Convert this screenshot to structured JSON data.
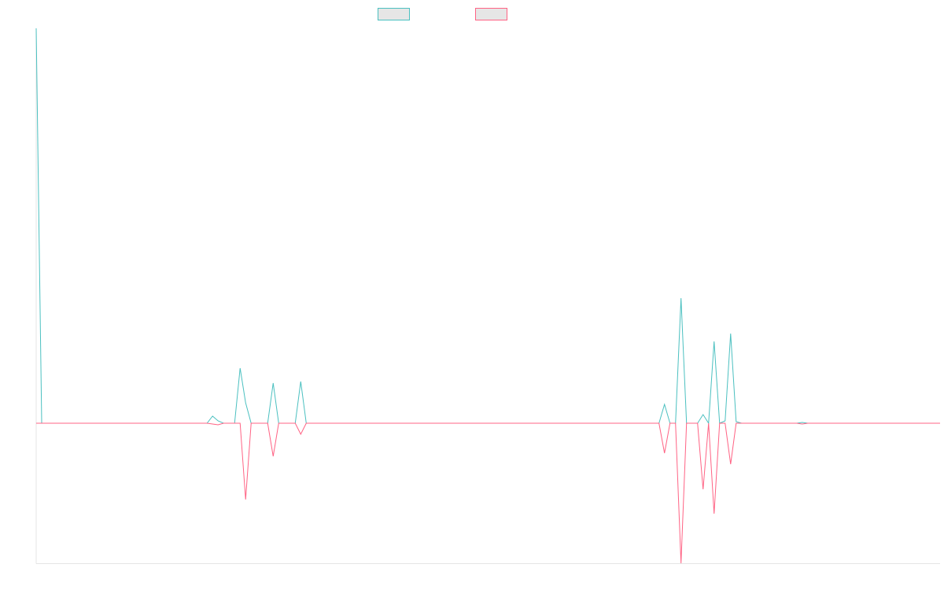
{
  "chart_data": {
    "type": "line",
    "ylim": [
      -178,
      502
    ],
    "series": [
      {
        "color": "#4bc0c0",
        "values": [
          502,
          0,
          0,
          0,
          0,
          0,
          0,
          0,
          0,
          0,
          0,
          0,
          0,
          0,
          0,
          0,
          0,
          0,
          0,
          0,
          0,
          0,
          0,
          0,
          0,
          0,
          0,
          0,
          0,
          0,
          0,
          0,
          9,
          3,
          0,
          0,
          0,
          70,
          26,
          0,
          0,
          0,
          0,
          51,
          0,
          0,
          0,
          0,
          53,
          0,
          0,
          0,
          0,
          0,
          0,
          0,
          0,
          0,
          0,
          0,
          0,
          0,
          0,
          0,
          0,
          0,
          0,
          0,
          0,
          0,
          0,
          0,
          0,
          0,
          0,
          0,
          0,
          0,
          0,
          0,
          0,
          0,
          0,
          0,
          0,
          0,
          0,
          0,
          0,
          0,
          0,
          0,
          0,
          0,
          0,
          0,
          0,
          0,
          0,
          0,
          0,
          0,
          0,
          0,
          0,
          0,
          0,
          0,
          0,
          0,
          0,
          0,
          0,
          0,
          24,
          0,
          0,
          159,
          0,
          0,
          0,
          11,
          0,
          104,
          0,
          3,
          114,
          2,
          0,
          0,
          0,
          0,
          0,
          0,
          0,
          0,
          0,
          0,
          0,
          1,
          0,
          0,
          0,
          0,
          0,
          0,
          0,
          0,
          0,
          0,
          0,
          0,
          0,
          0,
          0,
          0,
          0,
          0,
          0,
          0,
          0,
          0,
          0,
          0,
          0
        ]
      },
      {
        "color": "#ff6384",
        "values": [
          0,
          0,
          0,
          0,
          0,
          0,
          0,
          0,
          0,
          0,
          0,
          0,
          0,
          0,
          0,
          0,
          0,
          0,
          0,
          0,
          0,
          0,
          0,
          0,
          0,
          0,
          0,
          0,
          0,
          0,
          0,
          0,
          -1,
          -2,
          0,
          0,
          0,
          0,
          -97,
          0,
          0,
          0,
          0,
          -42,
          0,
          0,
          0,
          0,
          -14,
          0,
          0,
          0,
          0,
          0,
          0,
          0,
          0,
          0,
          0,
          0,
          0,
          0,
          0,
          0,
          0,
          0,
          0,
          0,
          0,
          0,
          0,
          0,
          0,
          0,
          0,
          0,
          0,
          0,
          0,
          0,
          0,
          0,
          0,
          0,
          0,
          0,
          0,
          0,
          0,
          0,
          0,
          0,
          0,
          0,
          0,
          0,
          0,
          0,
          0,
          0,
          0,
          0,
          0,
          0,
          0,
          0,
          0,
          0,
          0,
          0,
          0,
          0,
          0,
          0,
          -38,
          0,
          0,
          -178,
          0,
          0,
          0,
          -84,
          0,
          -115,
          0,
          0,
          -52,
          0,
          0,
          0,
          0,
          0,
          0,
          0,
          0,
          0,
          0,
          0,
          0,
          -1,
          0,
          0,
          0,
          0,
          0,
          0,
          0,
          0,
          0,
          0,
          0,
          0,
          0,
          0,
          0,
          0,
          0,
          0,
          0,
          0,
          0,
          0,
          0,
          0,
          0
        ]
      }
    ]
  }
}
